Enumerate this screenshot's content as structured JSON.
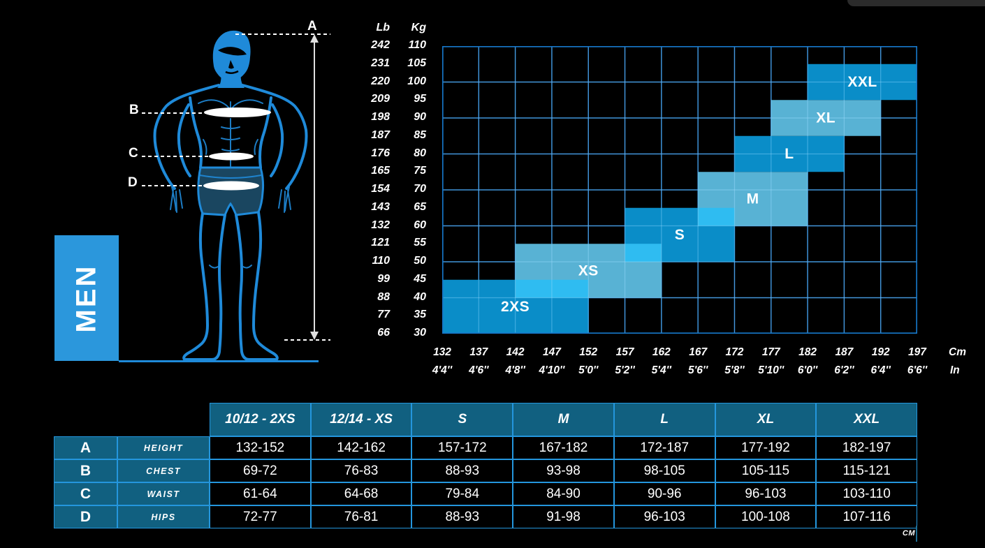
{
  "men_label": "MEN",
  "measure_points": {
    "a": "A",
    "b": "B",
    "c": "C",
    "d": "D"
  },
  "chart_data": {
    "type": "heatmap",
    "title": "Men size chart: height vs weight size regions",
    "x_axis": {
      "unit_primary": "Cm",
      "unit_secondary": "In",
      "cm": [
        132,
        137,
        142,
        147,
        152,
        157,
        162,
        167,
        172,
        177,
        182,
        187,
        192,
        197
      ],
      "inches": [
        "4'4''",
        "4'6''",
        "4'8''",
        "4'10''",
        "5'0''",
        "5'2''",
        "5'4''",
        "5'6''",
        "5'8''",
        "5'10''",
        "6'0''",
        "6'2''",
        "6'4''",
        "6'6''"
      ]
    },
    "y_axis": {
      "unit_primary": "Lb",
      "unit_secondary": "Kg",
      "lb": [
        242,
        231,
        220,
        209,
        198,
        187,
        176,
        165,
        154,
        143,
        132,
        121,
        110,
        99,
        88,
        77,
        66
      ],
      "kg": [
        110,
        105,
        100,
        95,
        90,
        85,
        80,
        75,
        70,
        65,
        60,
        55,
        50,
        45,
        40,
        35,
        30
      ]
    },
    "grid": {
      "cm_min": 132,
      "cm_max": 197,
      "cm_per_col": 5,
      "kg_min": 30,
      "kg_max": 110,
      "kg_per_row": 10
    },
    "regions": [
      {
        "label": "2XS",
        "shade": "dark",
        "cm": [
          132,
          152
        ],
        "kg": [
          30,
          45
        ],
        "label_cm": 142,
        "label_kg": 37.5
      },
      {
        "label": "XS",
        "shade": "light",
        "cm": [
          142,
          162
        ],
        "kg": [
          40,
          55
        ],
        "label_cm": 152,
        "label_kg": 47.5
      },
      {
        "label": "S",
        "shade": "dark",
        "cm": [
          157,
          172
        ],
        "kg": [
          50,
          65
        ],
        "label_cm": 164.5,
        "label_kg": 57.5
      },
      {
        "label": "M",
        "shade": "light",
        "cm": [
          167,
          182
        ],
        "kg": [
          60,
          75
        ],
        "label_cm": 174.5,
        "label_kg": 67.5
      },
      {
        "label": "L",
        "shade": "dark",
        "cm": [
          172,
          187
        ],
        "kg": [
          75,
          85
        ],
        "label_cm": 179.5,
        "label_kg": 80
      },
      {
        "label": "XL",
        "shade": "light",
        "cm": [
          177,
          192
        ],
        "kg": [
          85,
          95
        ],
        "label_cm": 184.5,
        "label_kg": 90
      },
      {
        "label": "XXL",
        "shade": "dark",
        "cm": [
          182,
          197
        ],
        "kg": [
          95,
          105
        ],
        "label_cm": 189.5,
        "label_kg": 100
      }
    ],
    "overlaps": [
      {
        "between": [
          "2XS",
          "XS"
        ],
        "cm": [
          142,
          152
        ],
        "kg": [
          40,
          45
        ]
      },
      {
        "between": [
          "XS",
          "S"
        ],
        "cm": [
          157,
          162
        ],
        "kg": [
          50,
          55
        ]
      },
      {
        "between": [
          "S",
          "M"
        ],
        "cm": [
          167,
          172
        ],
        "kg": [
          60,
          65
        ]
      }
    ]
  },
  "size_table": {
    "column_headers": [
      "10/12 - 2XS",
      "12/14 - XS",
      "S",
      "M",
      "L",
      "XL",
      "XXL"
    ],
    "rows": [
      {
        "letter": "A",
        "measure": "HEIGHT",
        "values": [
          "132-152",
          "142-162",
          "157-172",
          "167-182",
          "172-187",
          "177-192",
          "182-197"
        ]
      },
      {
        "letter": "B",
        "measure": "CHEST",
        "values": [
          "69-72",
          "76-83",
          "88-93",
          "93-98",
          "98-105",
          "105-115",
          "115-121"
        ]
      },
      {
        "letter": "C",
        "measure": "WAIST",
        "values": [
          "61-64",
          "64-68",
          "79-84",
          "84-90",
          "90-96",
          "96-103",
          "103-110"
        ]
      },
      {
        "letter": "D",
        "measure": "HIPS",
        "values": [
          "72-77",
          "76-81",
          "88-93",
          "91-98",
          "96-103",
          "100-108",
          "107-116"
        ]
      }
    ],
    "unit_note": "CM"
  },
  "colors": {
    "background": "#000000",
    "grid_line": "#1777c9",
    "region_dark": "#0a93d0",
    "region_light": "#5cb9dd",
    "region_overlap": "#2fbcf1",
    "men_box": "#2b97dc",
    "figure_outline": "#1f8ad9",
    "shorts": "#1a4660",
    "table_header_bg": "#116080",
    "table_border": "#2496dd"
  }
}
